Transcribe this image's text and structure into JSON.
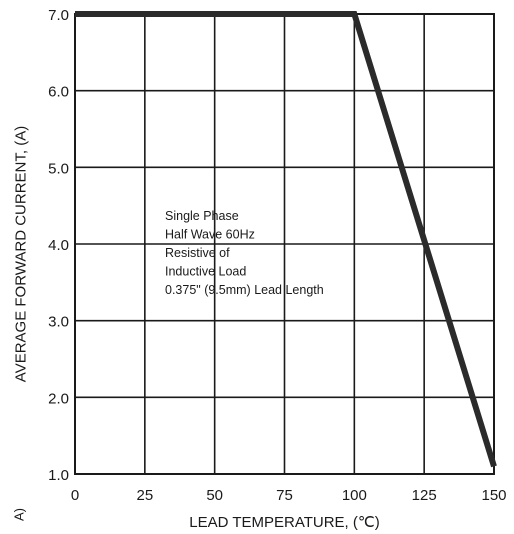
{
  "chart_data": {
    "type": "line",
    "xlabel": "LEAD TEMPERATURE, (℃)",
    "ylabel": "AVERAGE FORWARD CURRENT, (A)",
    "xlim": [
      0,
      150
    ],
    "ylim": [
      1.0,
      7.0
    ],
    "x_ticks": [
      0,
      25,
      50,
      75,
      100,
      125,
      150
    ],
    "x_tick_labels": [
      "0",
      "25",
      "50",
      "75",
      "100",
      "125",
      "150"
    ],
    "y_ticks": [
      1.0,
      2.0,
      3.0,
      4.0,
      5.0,
      6.0,
      7.0
    ],
    "y_tick_labels": [
      "1.0",
      "2.0",
      "3.0",
      "4.0",
      "5.0",
      "6.0",
      "7.0"
    ],
    "grid": true,
    "series": [
      {
        "x": [
          0,
          100,
          150
        ],
        "y": [
          7.0,
          7.0,
          1.1
        ]
      }
    ],
    "annotations": [
      "Single Phase",
      "Half Wave 60Hz",
      "Resistive of",
      "Inductive Load",
      "0.375\" (9.5mm) Lead Length"
    ],
    "corner_fragment": "A)",
    "line_color": "#2b2b2b"
  }
}
